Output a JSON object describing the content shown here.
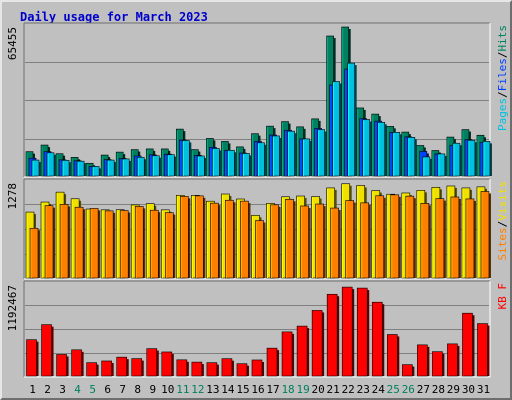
{
  "title": "Daily usage for March 2023",
  "colors": {
    "pages": "#00c0e0",
    "files": "#0040ff",
    "hits": "#008060",
    "visits": "#f0e000",
    "sites": "#ff8000",
    "kbf": "#ff0000",
    "weekend_tick": "#00805c",
    "weekday_tick": "#000000"
  },
  "chart_data": [
    {
      "type": "bar",
      "title": "Daily usage for March 2023",
      "x": [
        1,
        2,
        3,
        4,
        5,
        6,
        7,
        8,
        9,
        10,
        11,
        12,
        13,
        14,
        15,
        16,
        17,
        18,
        19,
        20,
        21,
        22,
        23,
        24,
        25,
        26,
        27,
        28,
        29,
        30,
        31
      ],
      "weekend_days": [
        4,
        5,
        11,
        12,
        18,
        19,
        25,
        26
      ],
      "y_axis_label": "65455",
      "ylim": [
        0,
        65455
      ],
      "grid": true,
      "legend": [
        "Pages",
        "Files",
        "Hits"
      ],
      "series": [
        {
          "name": "Hits",
          "color": "#008060",
          "values": [
            10700,
            13600,
            9800,
            8200,
            5600,
            9200,
            10500,
            11600,
            11900,
            11900,
            20600,
            11600,
            16500,
            15200,
            12800,
            18600,
            21900,
            23900,
            21600,
            25100,
            61500,
            65455,
            29900,
            27200,
            21800,
            19300,
            13400,
            11200,
            17100,
            20400,
            17900
          ]
        },
        {
          "name": "Files",
          "color": "#0040ff",
          "values": [
            7800,
            10700,
            7100,
            6700,
            4200,
            7200,
            7700,
            8800,
            9300,
            9600,
            15800,
            9100,
            12600,
            11200,
            10100,
            15200,
            18000,
            20100,
            16300,
            20900,
            40000,
            47000,
            25200,
            24100,
            19200,
            17200,
            10800,
            9700,
            13500,
            16000,
            14700
          ]
        },
        {
          "name": "Pages",
          "color": "#00c0e0",
          "values": [
            7000,
            10200,
            6900,
            6500,
            4200,
            7000,
            7500,
            8200,
            8900,
            9400,
            15600,
            8800,
            12100,
            11300,
            9900,
            14600,
            17600,
            19700,
            16300,
            20400,
            41500,
            49600,
            24800,
            23600,
            19200,
            17000,
            8400,
            9700,
            14400,
            15700,
            15200
          ]
        }
      ]
    },
    {
      "type": "bar",
      "x": [
        1,
        2,
        3,
        4,
        5,
        6,
        7,
        8,
        9,
        10,
        11,
        12,
        13,
        14,
        15,
        16,
        17,
        18,
        19,
        20,
        21,
        22,
        23,
        24,
        25,
        26,
        27,
        28,
        29,
        30,
        31
      ],
      "y_axis_label": "1278",
      "ylim": [
        0,
        1278
      ],
      "grid": true,
      "legend": [
        "Sites",
        "Visits"
      ],
      "series": [
        {
          "name": "Visits",
          "color": "#f0e000",
          "values": [
            887,
            1022,
            1155,
            1066,
            928,
            917,
            919,
            983,
            1000,
            917,
            1112,
            1112,
            1033,
            1130,
            1063,
            843,
            1004,
            1093,
            1103,
            1096,
            1212,
            1268,
            1245,
            1176,
            1127,
            1144,
            1179,
            1219,
            1238,
            1212,
            1226
          ]
        },
        {
          "name": "Sites",
          "color": "#ff8000",
          "values": [
            669,
            973,
            990,
            952,
            936,
            903,
            907,
            963,
            912,
            880,
            1098,
            1105,
            1007,
            1046,
            1034,
            773,
            985,
            1059,
            969,
            995,
            941,
            1042,
            1011,
            1106,
            1119,
            1101,
            1004,
            1068,
            1090,
            1064,
            1164
          ]
        }
      ]
    },
    {
      "type": "bar",
      "x": [
        1,
        2,
        3,
        4,
        5,
        6,
        7,
        8,
        9,
        10,
        11,
        12,
        13,
        14,
        15,
        16,
        17,
        18,
        19,
        20,
        21,
        22,
        23,
        24,
        25,
        26,
        27,
        28,
        29,
        30,
        31
      ],
      "y_axis_label": "1192467",
      "ylim": [
        0,
        1192467
      ],
      "grid": true,
      "legend": [
        "KB F"
      ],
      "series": [
        {
          "name": "KB F",
          "color": "#ff0000",
          "values": [
            476000,
            673000,
            282000,
            343000,
            175000,
            197000,
            247000,
            228000,
            359000,
            315000,
            212000,
            182000,
            175000,
            227000,
            161000,
            210000,
            365000,
            578000,
            654000,
            859000,
            1071000,
            1165000,
            1152000,
            967000,
            544000,
            149000,
            408000,
            319000,
            421000,
            823000,
            687000
          ]
        }
      ]
    }
  ]
}
